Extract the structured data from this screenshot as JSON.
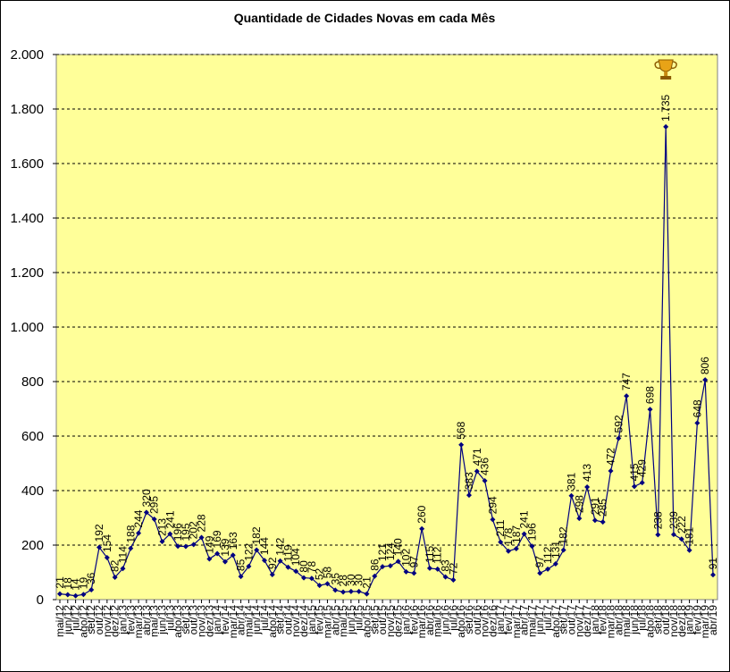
{
  "chart_data": {
    "type": "line",
    "title": "Quantidade de Cidades Novas em cada Mês",
    "xlabel": "",
    "ylabel": "",
    "ylim": [
      0,
      2000
    ],
    "ytick_labels": [
      "0",
      "200",
      "400",
      "600",
      "800",
      "1.000",
      "1.200",
      "1.400",
      "1.600",
      "1.800",
      "2.000"
    ],
    "ytick_values": [
      0,
      200,
      400,
      600,
      800,
      1000,
      1200,
      1400,
      1600,
      1800,
      2000
    ],
    "grid": true,
    "legend": "none",
    "colors": {
      "plot_bg": "#FFFF99",
      "line": "#000080",
      "grid": "#000000"
    },
    "marker_icon": "trophy-icon",
    "categories": [
      "mai/12",
      "jun/12",
      "jul/12",
      "ago/12",
      "set/12",
      "out/12",
      "nov/12",
      "dez/12",
      "jan/13",
      "fev/13",
      "mar/13",
      "abr/13",
      "mai/13",
      "jun/13",
      "jul/13",
      "ago/13",
      "set/13",
      "out/13",
      "nov/13",
      "dez/13",
      "jan/14",
      "fev/14",
      "mar/14",
      "abr/14",
      "mai/14",
      "jun/14",
      "jul/14",
      "ago/14",
      "set/14",
      "out/14",
      "nov/14",
      "dez/14",
      "jan/15",
      "fev/15",
      "mar/15",
      "abr/15",
      "mai/15",
      "jun/15",
      "jul/15",
      "ago/15",
      "set/15",
      "out/15",
      "nov/15",
      "dez/15",
      "jan/16",
      "fev/16",
      "mar/16",
      "abr/16",
      "mai/16",
      "jun/16",
      "jul/16",
      "ago/16",
      "set/16",
      "out/16",
      "nov/16",
      "dez/16",
      "jan/17",
      "fev/17",
      "mar/17",
      "abr/17",
      "mai/17",
      "jun/17",
      "jul/17",
      "ago/17",
      "set/17",
      "out/17",
      "nov/17",
      "dez/17",
      "jan/18",
      "fev/18",
      "mar/18",
      "abr/18",
      "mai/18",
      "jun/18",
      "jul/18",
      "ago/18",
      "set/18",
      "out/18",
      "nov/18",
      "dez/18",
      "jan/19",
      "fev/19",
      "mar/19",
      "abr/19"
    ],
    "values": [
      21,
      18,
      14,
      19,
      36,
      192,
      154,
      82,
      114,
      188,
      244,
      320,
      295,
      213,
      241,
      196,
      195,
      202,
      228,
      149,
      169,
      139,
      163,
      85,
      122,
      182,
      144,
      92,
      142,
      119,
      104,
      80,
      78,
      52,
      58,
      35,
      28,
      30,
      30,
      21,
      86,
      121,
      124,
      140,
      102,
      97,
      260,
      115,
      112,
      83,
      72,
      568,
      383,
      471,
      436,
      294,
      211,
      178,
      187,
      241,
      196,
      97,
      112,
      131,
      182,
      381,
      298,
      413,
      291,
      285,
      472,
      592,
      747,
      415,
      429,
      698,
      238,
      1735,
      239,
      222,
      181,
      648,
      806,
      91
    ],
    "data_labels": [
      "21",
      "18",
      "14",
      "19",
      "36",
      "192",
      "154",
      "82",
      "114",
      "188",
      "244",
      "320",
      "295",
      "213",
      "241",
      "196",
      "195",
      "202",
      "228",
      "149",
      "169",
      "139",
      "163",
      "85",
      "122",
      "182",
      "144",
      "92",
      "142",
      "119",
      "104",
      "80",
      "78",
      "52",
      "58",
      "35",
      "28",
      "30",
      "30",
      "21",
      "86",
      "121",
      "124",
      "140",
      "102",
      "97",
      "260",
      "115",
      "112",
      "83",
      "72",
      "568",
      "383",
      "471",
      "436",
      "294",
      "211",
      "178",
      "187",
      "241",
      "196",
      "97",
      "112",
      "131",
      "182",
      "381",
      "298",
      "413",
      "291",
      "285",
      "472",
      "592",
      "747",
      "415",
      "429",
      "698",
      "238",
      "1.735",
      "239",
      "222",
      "181",
      "648",
      "806",
      "91"
    ]
  }
}
